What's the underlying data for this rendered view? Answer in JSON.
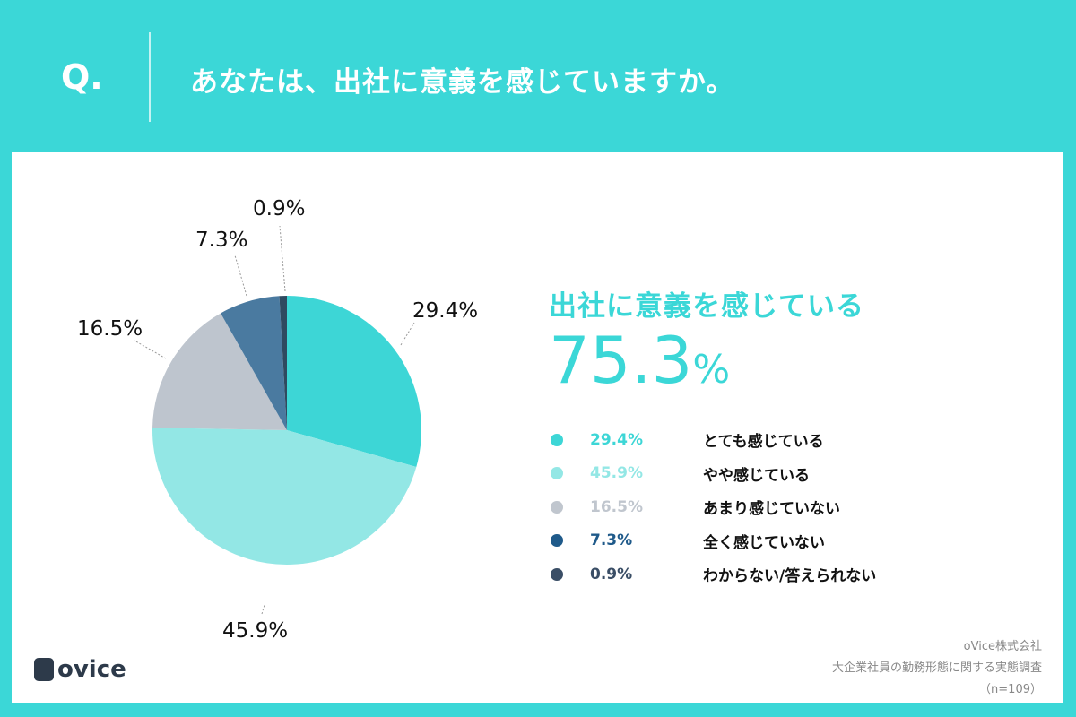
{
  "header": {
    "q": "Q.",
    "title": "あなたは、出社に意義を感じていますか。"
  },
  "summary": {
    "label": "出社に意義を感じている",
    "value": "75.3",
    "unit": "%"
  },
  "chart_data": {
    "type": "pie",
    "title": "あなたは、出社に意義を感じていますか。",
    "start": "top",
    "direction": "clockwise",
    "slices": [
      {
        "label": "とても感じている",
        "value": 29.4,
        "text": "29.4%",
        "color": "#3dd6d6",
        "legend_color": "#3dd6d6"
      },
      {
        "label": "やや感じている",
        "value": 45.9,
        "text": "45.9%",
        "color": "#93e7e5",
        "legend_color": "#93e7e5"
      },
      {
        "label": "あまり感じていない",
        "value": 16.5,
        "text": "16.5%",
        "color": "#bec5ce",
        "legend_color": "#c0c6ce"
      },
      {
        "label": "全く感じていない",
        "value": 7.3,
        "text": "7.3%",
        "color": "#4a7aa0",
        "legend_color": "#1f5a8a"
      },
      {
        "label": "わからない/答えられない",
        "value": 0.9,
        "text": "0.9%",
        "color": "#2f4a60",
        "legend_color": "#3a4e66"
      }
    ]
  },
  "footer": {
    "logo": "ovice",
    "company": "oVice株式会社",
    "survey": "大企業社員の勤務形態に関する実態調査",
    "n": "（n=109）"
  }
}
